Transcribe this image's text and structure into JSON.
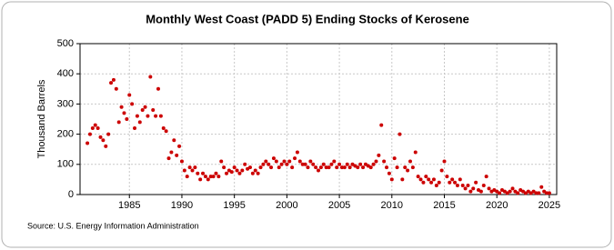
{
  "chart_data": {
    "type": "scatter",
    "title": "Monthly West Coast (PADD 5) Ending Stocks of Kerosene",
    "y_label": "Thousand Barrels",
    "source": "Source: U.S. Energy Information Administration",
    "color": "#cc0000",
    "grid": true,
    "xlim": [
      1980.3,
      2025.7
    ],
    "xticks": [
      1985,
      1990,
      1995,
      2000,
      2005,
      2010,
      2015,
      2020,
      2025
    ],
    "ylim": [
      0,
      500
    ],
    "yticks": [
      0,
      100,
      200,
      300,
      400,
      500
    ],
    "x": [
      1981,
      1981.25,
      1981.5,
      1981.75,
      1982,
      1982.25,
      1982.5,
      1982.75,
      1983,
      1983.25,
      1983.5,
      1983.75,
      1984,
      1984.25,
      1984.5,
      1984.75,
      1985,
      1985.25,
      1985.5,
      1985.75,
      1986,
      1986.25,
      1986.5,
      1986.75,
      1987,
      1987.25,
      1987.5,
      1987.75,
      1988,
      1988.25,
      1988.5,
      1988.75,
      1989,
      1989.25,
      1989.5,
      1989.75,
      1990,
      1990.25,
      1990.5,
      1990.75,
      1991,
      1991.25,
      1991.5,
      1991.75,
      1992,
      1992.25,
      1992.5,
      1992.75,
      1993,
      1993.25,
      1993.5,
      1993.75,
      1994,
      1994.25,
      1994.5,
      1994.75,
      1995,
      1995.25,
      1995.5,
      1995.75,
      1996,
      1996.25,
      1996.5,
      1996.75,
      1997,
      1997.25,
      1997.5,
      1997.75,
      1998,
      1998.25,
      1998.5,
      1998.75,
      1999,
      1999.25,
      1999.5,
      1999.75,
      2000,
      2000.25,
      2000.5,
      2000.75,
      2001,
      2001.25,
      2001.5,
      2001.75,
      2002,
      2002.25,
      2002.5,
      2002.75,
      2003,
      2003.25,
      2003.5,
      2003.75,
      2004,
      2004.25,
      2004.5,
      2004.75,
      2005,
      2005.25,
      2005.5,
      2005.75,
      2006,
      2006.25,
      2006.5,
      2006.75,
      2007,
      2007.25,
      2007.5,
      2007.75,
      2008,
      2008.25,
      2008.5,
      2008.75,
      2009,
      2009.25,
      2009.5,
      2009.75,
      2010,
      2010.25,
      2010.5,
      2010.75,
      2011,
      2011.25,
      2011.5,
      2011.75,
      2012,
      2012.25,
      2012.5,
      2012.75,
      2013,
      2013.25,
      2013.5,
      2013.75,
      2014,
      2014.25,
      2014.5,
      2014.75,
      2015,
      2015.25,
      2015.5,
      2015.75,
      2016,
      2016.25,
      2016.5,
      2016.75,
      2017,
      2017.25,
      2017.5,
      2017.75,
      2018,
      2018.25,
      2018.5,
      2018.75,
      2019,
      2019.25,
      2019.5,
      2019.75,
      2020,
      2020.25,
      2020.5,
      2020.75,
      2021,
      2021.25,
      2021.5,
      2021.75,
      2022,
      2022.25,
      2022.5,
      2022.75,
      2023,
      2023.25,
      2023.5,
      2023.75,
      2024,
      2024.25,
      2024.5,
      2024.75,
      2025
    ],
    "values": [
      170,
      200,
      220,
      230,
      220,
      190,
      180,
      160,
      200,
      370,
      380,
      350,
      240,
      290,
      270,
      250,
      330,
      300,
      220,
      260,
      240,
      280,
      290,
      260,
      390,
      280,
      260,
      350,
      260,
      220,
      210,
      120,
      140,
      180,
      130,
      160,
      110,
      80,
      60,
      90,
      80,
      90,
      70,
      50,
      70,
      60,
      50,
      60,
      60,
      70,
      60,
      110,
      90,
      70,
      80,
      75,
      90,
      80,
      70,
      80,
      100,
      85,
      90,
      70,
      80,
      70,
      90,
      100,
      110,
      100,
      90,
      120,
      110,
      90,
      100,
      110,
      100,
      110,
      90,
      120,
      140,
      110,
      100,
      100,
      90,
      110,
      100,
      90,
      80,
      90,
      100,
      90,
      90,
      100,
      110,
      90,
      100,
      90,
      90,
      100,
      90,
      100,
      95,
      90,
      100,
      90,
      100,
      95,
      90,
      100,
      110,
      130,
      230,
      110,
      90,
      70,
      50,
      120,
      90,
      200,
      50,
      90,
      80,
      110,
      90,
      140,
      60,
      50,
      40,
      60,
      50,
      40,
      50,
      30,
      40,
      80,
      110,
      60,
      40,
      50,
      40,
      30,
      50,
      30,
      20,
      30,
      10,
      20,
      40,
      15,
      10,
      30,
      60,
      20,
      10,
      15,
      10,
      5,
      15,
      10,
      5,
      10,
      20,
      10,
      5,
      15,
      10,
      5,
      10,
      5,
      10,
      5,
      5,
      25,
      10,
      5,
      5
    ]
  }
}
